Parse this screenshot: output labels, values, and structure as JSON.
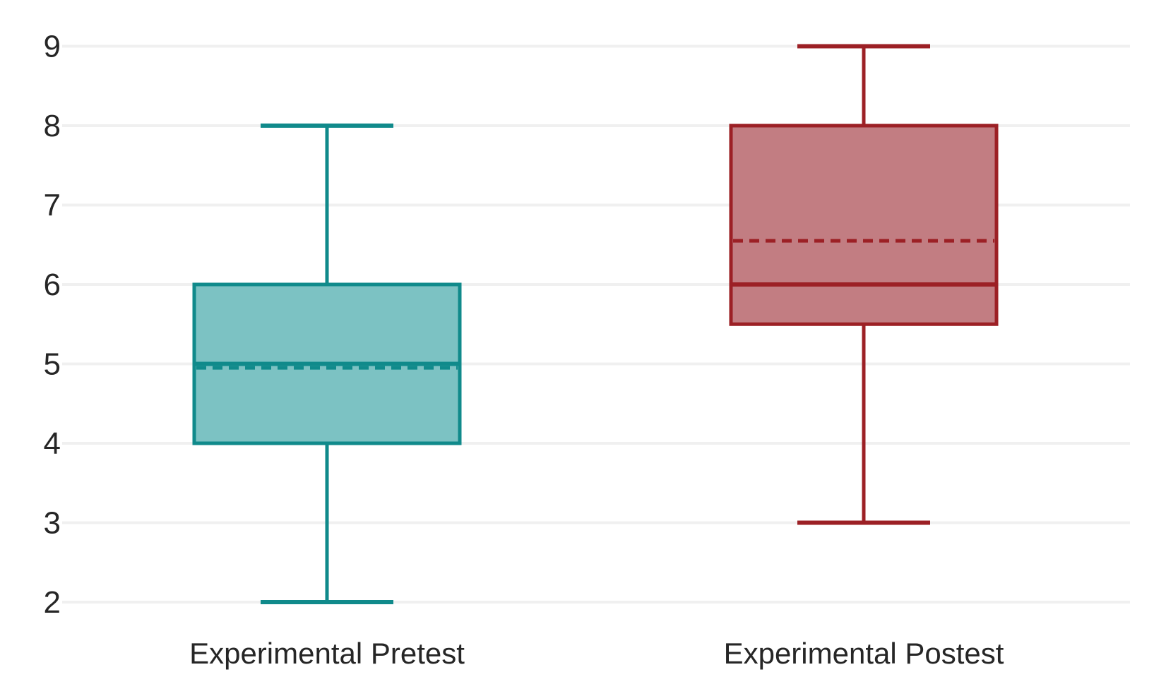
{
  "figure": {
    "background": "#ffffff",
    "gridline_color": "#f0f0f0",
    "text_color": "#262626"
  },
  "chart_data": {
    "type": "boxplot",
    "title": "",
    "xlabel": "",
    "ylabel": "",
    "categories": [
      "Experimental Pretest",
      "Experimental Postest"
    ],
    "y_ticks": [
      2,
      3,
      4,
      5,
      6,
      7,
      8,
      9
    ],
    "ylim": [
      2,
      9
    ],
    "grid": "horizontal",
    "legend": "none",
    "series": [
      {
        "name": "Experimental Pretest",
        "min": 2,
        "q1": 4,
        "median": 5,
        "mean": 4.95,
        "q3": 6,
        "max": 8,
        "fill": "#7cc2c3",
        "stroke": "#108a8b"
      },
      {
        "name": "Experimental Postest",
        "min": 3,
        "q1": 5.5,
        "median": 6,
        "mean": 6.55,
        "q3": 8,
        "max": 9,
        "fill": "#c27d82",
        "stroke": "#9c2025"
      }
    ]
  }
}
